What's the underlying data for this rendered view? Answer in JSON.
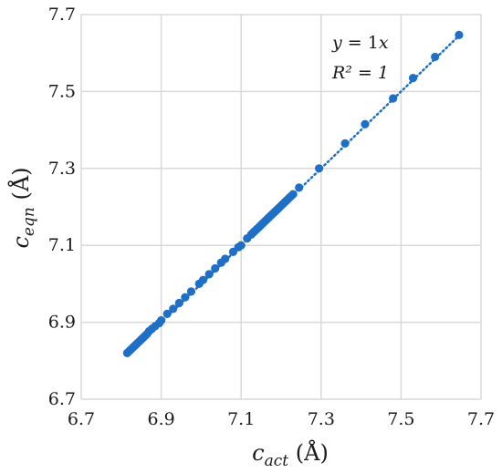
{
  "chart_data": {
    "type": "scatter",
    "xlabel": {
      "base": "c",
      "sub": "act",
      "unit": " (Å)"
    },
    "ylabel": {
      "base": "c",
      "sub": "eqn",
      "unit": " (Å)"
    },
    "xlim": [
      6.7,
      7.7
    ],
    "ylim": [
      6.7,
      7.7
    ],
    "xticks": [
      "6.7",
      "6.9",
      "7.1",
      "7.3",
      "7.5",
      "7.7"
    ],
    "yticks": [
      "6.7",
      "6.9",
      "7.1",
      "7.3",
      "7.5",
      "7.7"
    ],
    "grid": true,
    "annotation": {
      "equation": {
        "lhs": "y",
        "mid": " = 1",
        "rhs": "x"
      },
      "r2": {
        "lhs": "R² = 1"
      }
    },
    "trendline": {
      "style": "dotted",
      "slope": 1,
      "intercept": 0
    },
    "colors": {
      "points": "#1f6fc6",
      "grid": "#d9d9d9",
      "axis": "#bfbfbf"
    },
    "points": [
      [
        6.815,
        6.82
      ],
      [
        6.82,
        6.825
      ],
      [
        6.825,
        6.83
      ],
      [
        6.83,
        6.835
      ],
      [
        6.835,
        6.84
      ],
      [
        6.84,
        6.845
      ],
      [
        6.845,
        6.85
      ],
      [
        6.85,
        6.855
      ],
      [
        6.855,
        6.86
      ],
      [
        6.86,
        6.865
      ],
      [
        6.865,
        6.87
      ],
      [
        6.87,
        6.877
      ],
      [
        6.877,
        6.883
      ],
      [
        6.885,
        6.89
      ],
      [
        6.895,
        6.898
      ],
      [
        6.9,
        6.905
      ],
      [
        6.915,
        6.922
      ],
      [
        6.93,
        6.935
      ],
      [
        6.945,
        6.95
      ],
      [
        6.96,
        6.965
      ],
      [
        6.975,
        6.98
      ],
      [
        6.995,
        7.0
      ],
      [
        7.005,
        7.01
      ],
      [
        7.02,
        7.025
      ],
      [
        7.035,
        7.04
      ],
      [
        7.05,
        7.055
      ],
      [
        7.06,
        7.065
      ],
      [
        7.08,
        7.083
      ],
      [
        7.093,
        7.095
      ],
      [
        7.1,
        7.1
      ],
      [
        7.115,
        7.118
      ],
      [
        7.125,
        7.128
      ],
      [
        7.13,
        7.133
      ],
      [
        7.135,
        7.138
      ],
      [
        7.14,
        7.143
      ],
      [
        7.145,
        7.148
      ],
      [
        7.15,
        7.153
      ],
      [
        7.155,
        7.158
      ],
      [
        7.16,
        7.163
      ],
      [
        7.165,
        7.168
      ],
      [
        7.17,
        7.173
      ],
      [
        7.175,
        7.178
      ],
      [
        7.18,
        7.183
      ],
      [
        7.185,
        7.188
      ],
      [
        7.19,
        7.193
      ],
      [
        7.195,
        7.198
      ],
      [
        7.2,
        7.203
      ],
      [
        7.205,
        7.208
      ],
      [
        7.21,
        7.213
      ],
      [
        7.215,
        7.218
      ],
      [
        7.22,
        7.223
      ],
      [
        7.225,
        7.228
      ],
      [
        7.23,
        7.233
      ],
      [
        7.245,
        7.25
      ],
      [
        7.295,
        7.3
      ],
      [
        7.36,
        7.365
      ],
      [
        7.41,
        7.415
      ],
      [
        7.48,
        7.482
      ],
      [
        7.53,
        7.535
      ],
      [
        7.585,
        7.59
      ],
      [
        7.645,
        7.647
      ]
    ]
  }
}
